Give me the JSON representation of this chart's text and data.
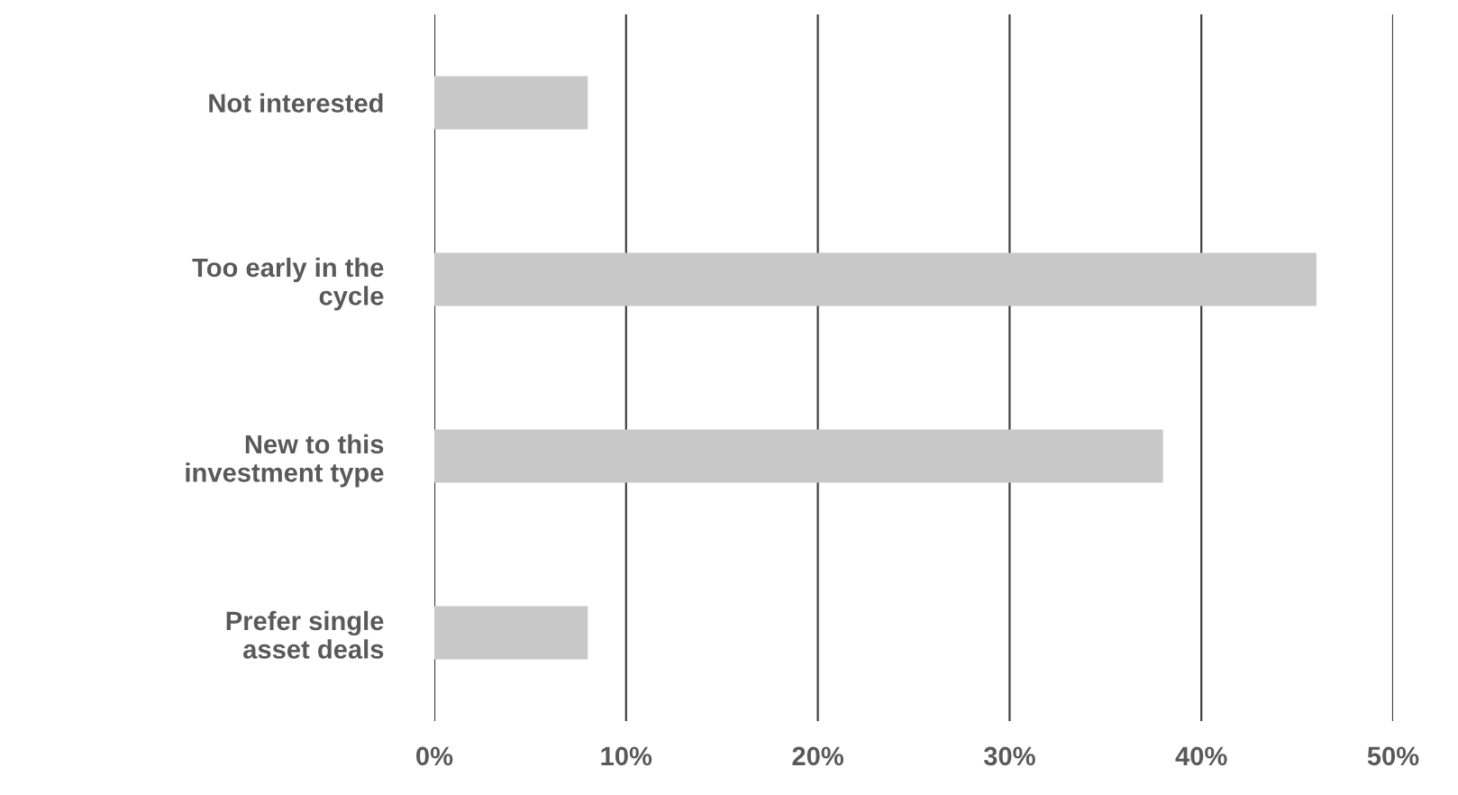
{
  "chart_data": {
    "type": "bar",
    "orientation": "horizontal",
    "categories": [
      "Not interested",
      "Too early in the\ncycle",
      "New to this\ninvestment type",
      "Prefer single\nasset deals"
    ],
    "values": [
      8,
      46,
      38,
      8
    ],
    "color": "#c8c8c8",
    "xlim": [
      0,
      50
    ],
    "xticks": [
      {
        "value": 0,
        "label": "0%"
      },
      {
        "value": 10,
        "label": "10%"
      },
      {
        "value": 20,
        "label": "20%"
      },
      {
        "value": 30,
        "label": "30%"
      },
      {
        "value": 40,
        "label": "40%"
      },
      {
        "value": 50,
        "label": "50%"
      }
    ],
    "grid": "x",
    "legend": false
  }
}
